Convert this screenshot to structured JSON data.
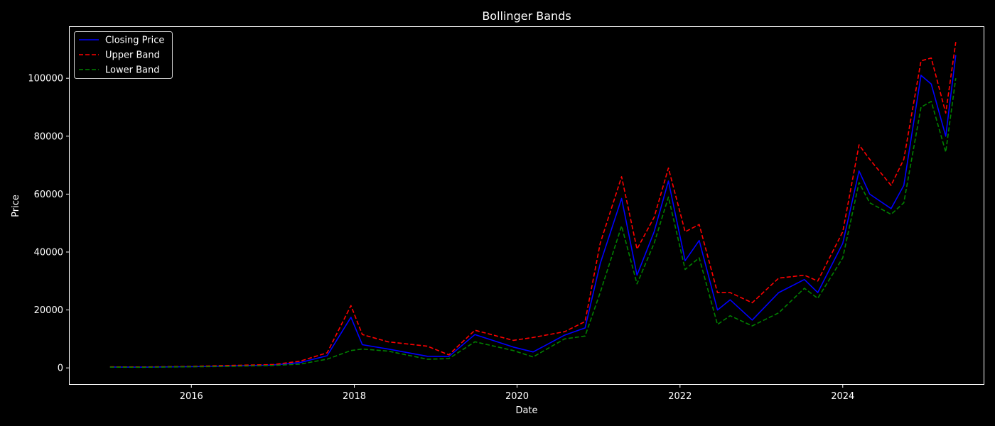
{
  "chart_data": {
    "type": "line",
    "title": "Bollinger Bands",
    "xlabel": "Date",
    "ylabel": "Price",
    "xlim": [
      "2014-07-04",
      "2025-09-24"
    ],
    "ylim": [
      -5600,
      117700
    ],
    "x_ticks": [
      "2016",
      "2018",
      "2020",
      "2022",
      "2024"
    ],
    "y_ticks": [
      0,
      20000,
      40000,
      60000,
      80000,
      100000
    ],
    "grid": false,
    "legend_position": "top-left",
    "series": [
      {
        "name": "Closing Price",
        "color": "#0000ff",
        "style": "solid",
        "x": [
          "2015-01-01",
          "2015-06-01",
          "2016-01-01",
          "2016-06-01",
          "2017-01-01",
          "2017-05-01",
          "2017-09-01",
          "2017-12-17",
          "2018-02-06",
          "2018-06-01",
          "2018-11-25",
          "2019-03-01",
          "2019-06-26",
          "2019-12-15",
          "2020-03-13",
          "2020-08-01",
          "2020-11-01",
          "2021-01-08",
          "2021-04-14",
          "2021-06-22",
          "2021-09-07",
          "2021-11-10",
          "2022-01-24",
          "2022-03-28",
          "2022-06-18",
          "2022-08-14",
          "2022-11-21",
          "2023-03-20",
          "2023-07-13",
          "2023-09-11",
          "2024-01-01",
          "2024-03-14",
          "2024-05-01",
          "2024-08-05",
          "2024-10-01",
          "2024-12-17",
          "2025-02-01",
          "2025-04-07",
          "2025-05-22"
        ],
        "y": [
          300,
          250,
          430,
          650,
          1000,
          1800,
          4200,
          17500,
          8000,
          6500,
          4000,
          3900,
          11500,
          7200,
          5500,
          11300,
          13800,
          36000,
          58500,
          32000,
          47000,
          64500,
          37000,
          44000,
          20000,
          23500,
          16500,
          26000,
          30500,
          26000,
          43000,
          68000,
          60000,
          55000,
          63000,
          101000,
          98000,
          80000,
          108000
        ]
      },
      {
        "name": "Upper Band",
        "color": "#ff0000",
        "style": "dashed",
        "x": [
          "2015-01-01",
          "2015-06-01",
          "2016-01-01",
          "2016-06-01",
          "2017-01-01",
          "2017-05-01",
          "2017-09-01",
          "2017-12-17",
          "2018-02-06",
          "2018-06-01",
          "2018-11-25",
          "2019-03-01",
          "2019-06-26",
          "2019-12-15",
          "2020-03-13",
          "2020-08-01",
          "2020-11-01",
          "2021-01-08",
          "2021-04-14",
          "2021-06-22",
          "2021-09-07",
          "2021-11-10",
          "2022-01-24",
          "2022-03-28",
          "2022-06-18",
          "2022-08-14",
          "2022-11-21",
          "2023-03-20",
          "2023-07-13",
          "2023-09-11",
          "2024-01-01",
          "2024-03-14",
          "2024-05-01",
          "2024-08-05",
          "2024-10-01",
          "2024-12-17",
          "2025-02-01",
          "2025-04-07",
          "2025-05-22"
        ],
        "y": [
          350,
          300,
          520,
          800,
          1150,
          2300,
          5200,
          21500,
          11500,
          9000,
          7500,
          4500,
          13000,
          9500,
          10500,
          12500,
          16000,
          43000,
          66000,
          41000,
          52000,
          69000,
          47000,
          49500,
          26000,
          26000,
          22500,
          31000,
          32000,
          30000,
          47000,
          77000,
          72000,
          63000,
          72000,
          106000,
          107000,
          88000,
          112500
        ]
      },
      {
        "name": "Lower Band",
        "color": "#008000",
        "style": "dashed",
        "x": [
          "2015-01-01",
          "2015-06-01",
          "2016-01-01",
          "2016-06-01",
          "2017-01-01",
          "2017-05-01",
          "2017-09-01",
          "2017-12-17",
          "2018-02-06",
          "2018-06-01",
          "2018-11-25",
          "2019-03-01",
          "2019-06-26",
          "2019-12-15",
          "2020-03-13",
          "2020-08-01",
          "2020-11-01",
          "2021-01-08",
          "2021-04-14",
          "2021-06-22",
          "2021-09-07",
          "2021-11-10",
          "2022-01-24",
          "2022-03-28",
          "2022-06-18",
          "2022-08-14",
          "2022-11-21",
          "2023-03-20",
          "2023-07-13",
          "2023-09-11",
          "2024-01-01",
          "2024-03-14",
          "2024-05-01",
          "2024-08-05",
          "2024-10-01",
          "2024-12-17",
          "2025-02-01",
          "2025-04-07",
          "2025-05-22"
        ],
        "y": [
          250,
          200,
          380,
          500,
          850,
          1300,
          3000,
          6000,
          6500,
          5800,
          3000,
          3200,
          9000,
          6000,
          3800,
          10000,
          11000,
          26000,
          49000,
          29000,
          43000,
          59000,
          34000,
          38000,
          15000,
          18000,
          14500,
          19000,
          27500,
          24000,
          38000,
          64000,
          57000,
          53000,
          57000,
          90000,
          92000,
          74500,
          100000
        ]
      }
    ]
  }
}
